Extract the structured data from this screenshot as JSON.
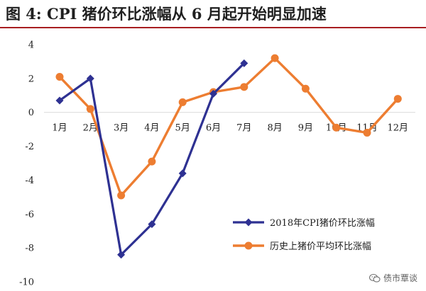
{
  "figure": {
    "title": "图 4:  CPI 猪价环比涨幅从 6 月起开始明显加速"
  },
  "watermark": {
    "text": "债市覃谈",
    "icon": "wechat-icon"
  },
  "colors": {
    "series_1": "#2E3192",
    "series_2": "#ED7D31",
    "title_rule": "#A81E21",
    "axis": "#d9d9d9"
  },
  "chart_data": {
    "type": "line",
    "title": "图 4:  CPI 猪价环比涨幅从 6 月起开始明显加速",
    "xlabel": "",
    "ylabel": "",
    "categories": [
      "1月",
      "2月",
      "3月",
      "4月",
      "5月",
      "6月",
      "7月",
      "8月",
      "9月",
      "10月",
      "11月",
      "12月"
    ],
    "yticks": [
      4,
      2,
      0,
      -2,
      -4,
      -6,
      -8,
      -10
    ],
    "ylim": [
      -10,
      4
    ],
    "grid": false,
    "legend_position": "bottom-right",
    "series": [
      {
        "name": "2018年CPI猪价环比涨幅",
        "marker": "diamond",
        "color": "#2E3192",
        "values": [
          0.7,
          2.0,
          -8.4,
          -6.6,
          -3.6,
          1.1,
          2.9,
          null,
          null,
          null,
          null,
          null
        ]
      },
      {
        "name": "历史上猪价平均环比涨幅",
        "marker": "circle",
        "color": "#ED7D31",
        "values": [
          2.1,
          0.2,
          -4.9,
          -2.9,
          0.6,
          1.2,
          1.5,
          3.2,
          1.4,
          -0.9,
          -1.2,
          0.8
        ]
      }
    ]
  }
}
